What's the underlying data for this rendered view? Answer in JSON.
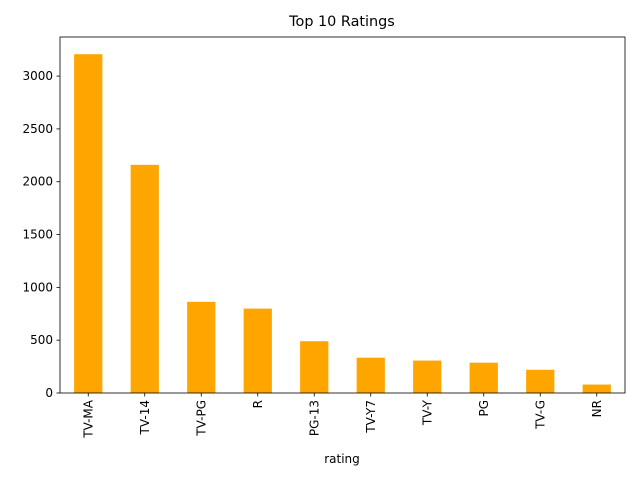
{
  "chart_data": {
    "type": "bar",
    "title": "Top 10 Ratings",
    "xlabel": "rating",
    "ylabel": "",
    "categories": [
      "TV-MA",
      "TV-14",
      "TV-PG",
      "R",
      "PG-13",
      "TV-Y7",
      "TV-Y",
      "PG",
      "TV-G",
      "NR"
    ],
    "values": [
      3207,
      2160,
      863,
      799,
      490,
      334,
      307,
      287,
      220,
      80
    ],
    "ylim": [
      0,
      3370
    ],
    "yticks": [
      0,
      500,
      1000,
      1500,
      2000,
      2500,
      3000
    ],
    "grid": false,
    "bar_color": "#ffa500"
  }
}
